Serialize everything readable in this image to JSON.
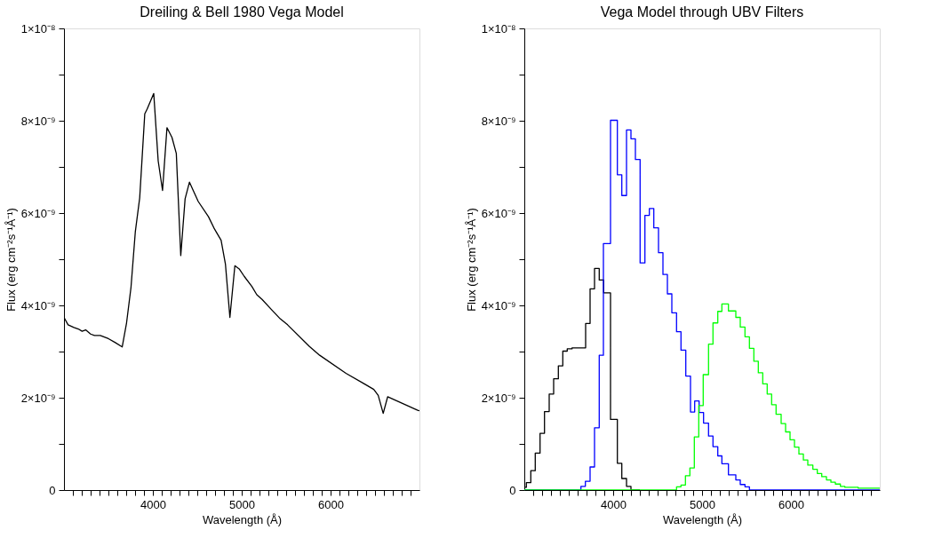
{
  "chart_data": [
    {
      "type": "line",
      "title": "Dreiling & Bell 1980 Vega Model",
      "xlabel": "Wavelength (Å)",
      "ylabel": "Flux (erg cm⁻²s⁻¹Å⁻¹)",
      "x": [
        3000,
        3046,
        3112,
        3161,
        3204,
        3244,
        3299,
        3343,
        3408,
        3500,
        3573,
        3655,
        3704,
        3754,
        3803,
        3852,
        3909,
        3935,
        4010,
        4060,
        4109,
        4159,
        4215,
        4264,
        4314,
        4363,
        4412,
        4511,
        4626,
        4692,
        4768,
        4817,
        4867,
        4923,
        4972,
        5028,
        5114,
        5170,
        5229,
        5334,
        5433,
        5516,
        5762,
        5877,
        6173,
        6371,
        6486,
        6536,
        6592,
        6642,
        6980,
        7000
      ],
      "values": [
        3.74e-09,
        3.58e-09,
        3.52e-09,
        3.49e-09,
        3.44e-09,
        3.47e-09,
        3.38e-09,
        3.35e-09,
        3.35e-09,
        3.28e-09,
        3.2e-09,
        3.1e-09,
        3.62e-09,
        4.39e-09,
        5.6e-09,
        6.33e-09,
        8.15e-09,
        8.25e-09,
        8.59e-09,
        7.13e-09,
        6.49e-09,
        7.85e-09,
        7.64e-09,
        7.29e-09,
        5.08e-09,
        6.31e-09,
        6.67e-09,
        6.25e-09,
        5.92e-09,
        5.66e-09,
        5.41e-09,
        4.89e-09,
        3.74e-09,
        4.86e-09,
        4.79e-09,
        4.63e-09,
        4.41e-09,
        4.23e-09,
        4.13e-09,
        3.91e-09,
        3.71e-09,
        3.58e-09,
        3.11e-09,
        2.92e-09,
        2.53e-09,
        2.31e-09,
        2.18e-09,
        2.05e-09,
        1.66e-09,
        2.02e-09,
        1.73e-09,
        1.72e-09
      ],
      "color": "#000000",
      "xlim": [
        3000,
        7000
      ],
      "xticks": [
        {
          "value": 3100,
          "label": null
        },
        {
          "value": 3200,
          "label": null
        },
        {
          "value": 3300,
          "label": null
        },
        {
          "value": 3400,
          "label": null
        },
        {
          "value": 3500,
          "label": null
        },
        {
          "value": 3600,
          "label": null
        },
        {
          "value": 3700,
          "label": null
        },
        {
          "value": 3800,
          "label": null
        },
        {
          "value": 3900,
          "label": null
        },
        4000,
        {
          "value": 4100,
          "label": null
        },
        {
          "value": 4200,
          "label": null
        },
        {
          "value": 4300,
          "label": null
        },
        {
          "value": 4400,
          "label": null
        },
        {
          "value": 4500,
          "label": null
        },
        {
          "value": 4600,
          "label": null
        },
        {
          "value": 4700,
          "label": null
        },
        {
          "value": 4800,
          "label": null
        },
        {
          "value": 4900,
          "label": null
        },
        5000,
        {
          "value": 5100,
          "label": null
        },
        {
          "value": 5200,
          "label": null
        },
        {
          "value": 5300,
          "label": null
        },
        {
          "value": 5400,
          "label": null
        },
        {
          "value": 5500,
          "label": null
        },
        {
          "value": 5600,
          "label": null
        },
        {
          "value": 5700,
          "label": null
        },
        {
          "value": 5800,
          "label": null
        },
        {
          "value": 5900,
          "label": null
        },
        6000,
        {
          "value": 6100,
          "label": null
        },
        {
          "value": 6200,
          "label": null
        },
        {
          "value": 6300,
          "label": null
        },
        {
          "value": 6400,
          "label": null
        },
        {
          "value": 6500,
          "label": null
        },
        {
          "value": 6600,
          "label": null
        },
        {
          "value": 6700,
          "label": null
        },
        {
          "value": 6800,
          "label": null
        },
        {
          "value": 6900,
          "label": null
        }
      ],
      "ylim": [
        0,
        1e-08
      ],
      "yticks": [
        0,
        {
          "value": 1e-09,
          "label": null
        },
        {
          "value": 2e-09,
          "label": "2×10⁻⁹"
        },
        {
          "value": 3e-09,
          "label": null
        },
        {
          "value": 4e-09,
          "label": "4×10⁻⁹"
        },
        {
          "value": 5e-09,
          "label": null
        },
        {
          "value": 6e-09,
          "label": "6×10⁻⁹"
        },
        {
          "value": 7e-09,
          "label": null
        },
        {
          "value": 8e-09,
          "label": "8×10⁻⁹"
        },
        {
          "value": 9e-09,
          "label": null
        },
        {
          "value": 1e-08,
          "label": "1×10⁻⁸"
        }
      ]
    },
    {
      "type": "step",
      "title": "Vega Model through UBV Filters",
      "xlabel": "Wavelength (Å)",
      "ylabel": "Flux (erg cm⁻²s⁻¹Å⁻¹)",
      "series": [
        {
          "color": "#000000",
          "x": [
            3000,
            3023,
            3073,
            3123,
            3177,
            3227,
            3280,
            3330,
            3383,
            3433,
            3483,
            3537,
            3690,
            3740,
            3790,
            3843,
            3893,
            3970,
            4047,
            4097,
            4150,
            4200,
            4300
          ],
          "values": [
            6e-11,
            1.6e-10,
            4.2e-10,
            8e-10,
            1.23e-09,
            1.7e-09,
            2.08e-09,
            2.41e-09,
            2.69e-09,
            3.01e-09,
            3.06e-09,
            3.08e-09,
            3.61e-09,
            4.36e-09,
            4.8e-09,
            4.55e-09,
            4.27e-09,
            1.53e-09,
            5.8e-10,
            2.5e-10,
            8e-11,
            0,
            0
          ]
        },
        {
          "color": "#0000ff",
          "x": [
            3000,
            3637,
            3687,
            3740,
            3790,
            3843,
            3890,
            3970,
            4047,
            4097,
            4150,
            4200,
            4250,
            4303,
            4357,
            4407,
            4457,
            4510,
            4560,
            4610,
            4660,
            4713,
            4763,
            4817,
            4870,
            4917,
            4967,
            5017,
            5073,
            5123,
            5177,
            5223,
            5297,
            5380,
            5430,
            5483,
            5533,
            7000
          ],
          "values": [
            0,
            8e-11,
            1.9e-10,
            5e-10,
            1.35e-09,
            2.92e-09,
            5.34e-09,
            8.01e-09,
            6.83e-09,
            6.38e-09,
            7.8e-09,
            7.61e-09,
            7.16e-09,
            4.92e-09,
            5.95e-09,
            6.1e-09,
            5.68e-09,
            5.14e-09,
            4.67e-09,
            4.25e-09,
            3.84e-09,
            3.43e-09,
            3.03e-09,
            2.47e-09,
            1.69e-09,
            1.93e-09,
            1.68e-09,
            1.45e-09,
            1.17e-09,
            9.4e-10,
            7.4e-10,
            5.7e-10,
            3.3e-10,
            2.2e-10,
            1.2e-10,
            7e-11,
            0,
            0
          ]
        },
        {
          "color": "#00ff00",
          "x": [
            3000,
            4713,
            4763,
            4813,
            4863,
            4913,
            4963,
            5013,
            5073,
            5123,
            5177,
            5223,
            5297,
            5380,
            5430,
            5483,
            5533,
            5583,
            5633,
            5683,
            5733,
            5783,
            5833,
            5890,
            5940,
            5990,
            6040,
            6090,
            6140,
            6190,
            6247,
            6297,
            6347,
            6400,
            6450,
            6500,
            6557,
            6607,
            6757,
            7000
          ],
          "values": [
            0,
            7e-11,
            1.1e-10,
            3.1e-10,
            4.8e-10,
            1.15e-09,
            1.83e-09,
            2.5e-09,
            3.16e-09,
            3.62e-09,
            3.87e-09,
            4.03e-09,
            3.88e-09,
            3.74e-09,
            3.53e-09,
            3.32e-09,
            3.07e-09,
            2.79e-09,
            2.54e-09,
            2.3e-09,
            2.08e-09,
            1.85e-09,
            1.64e-09,
            1.44e-09,
            1.26e-09,
            1.09e-09,
            9.3e-10,
            7.8e-10,
            6.5e-10,
            5.4e-10,
            4.5e-10,
            3.6e-10,
            2.9e-10,
            2.2e-10,
            1.7e-10,
            1.3e-10,
            8e-11,
            6e-11,
            4e-11,
            4e-11
          ]
        }
      ],
      "xlim": [
        3000,
        7000
      ],
      "xticks": [
        {
          "value": 3100,
          "label": null
        },
        {
          "value": 3200,
          "label": null
        },
        {
          "value": 3300,
          "label": null
        },
        {
          "value": 3400,
          "label": null
        },
        {
          "value": 3500,
          "label": null
        },
        {
          "value": 3600,
          "label": null
        },
        {
          "value": 3700,
          "label": null
        },
        {
          "value": 3800,
          "label": null
        },
        {
          "value": 3900,
          "label": null
        },
        4000,
        {
          "value": 4100,
          "label": null
        },
        {
          "value": 4200,
          "label": null
        },
        {
          "value": 4300,
          "label": null
        },
        {
          "value": 4400,
          "label": null
        },
        {
          "value": 4500,
          "label": null
        },
        {
          "value": 4600,
          "label": null
        },
        {
          "value": 4700,
          "label": null
        },
        {
          "value": 4800,
          "label": null
        },
        {
          "value": 4900,
          "label": null
        },
        5000,
        {
          "value": 5100,
          "label": null
        },
        {
          "value": 5200,
          "label": null
        },
        {
          "value": 5300,
          "label": null
        },
        {
          "value": 5400,
          "label": null
        },
        {
          "value": 5500,
          "label": null
        },
        {
          "value": 5600,
          "label": null
        },
        {
          "value": 5700,
          "label": null
        },
        {
          "value": 5800,
          "label": null
        },
        {
          "value": 5900,
          "label": null
        },
        6000,
        {
          "value": 6100,
          "label": null
        },
        {
          "value": 6200,
          "label": null
        },
        {
          "value": 6300,
          "label": null
        },
        {
          "value": 6400,
          "label": null
        },
        {
          "value": 6500,
          "label": null
        },
        {
          "value": 6600,
          "label": null
        },
        {
          "value": 6700,
          "label": null
        },
        {
          "value": 6800,
          "label": null
        },
        {
          "value": 6900,
          "label": null
        }
      ],
      "ylim": [
        0,
        1e-08
      ],
      "yticks": [
        0,
        {
          "value": 1e-09,
          "label": null
        },
        {
          "value": 2e-09,
          "label": "2×10⁻⁹"
        },
        {
          "value": 3e-09,
          "label": null
        },
        {
          "value": 4e-09,
          "label": "4×10⁻⁹"
        },
        {
          "value": 5e-09,
          "label": null
        },
        {
          "value": 6e-09,
          "label": "6×10⁻⁹"
        },
        {
          "value": 7e-09,
          "label": null
        },
        {
          "value": 8e-09,
          "label": "8×10⁻⁹"
        },
        {
          "value": 9e-09,
          "label": null
        },
        {
          "value": 1e-08,
          "label": "1×10⁻⁸"
        }
      ]
    }
  ]
}
